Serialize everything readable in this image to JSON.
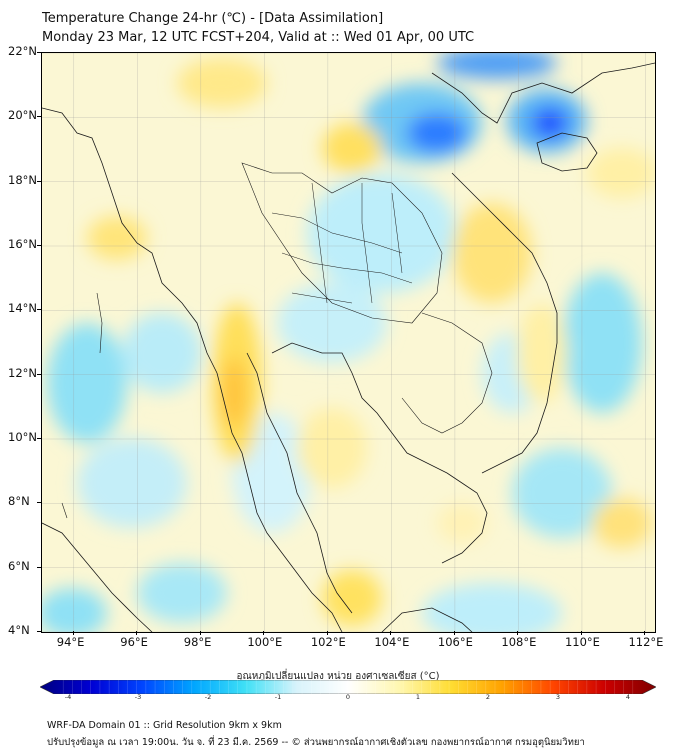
{
  "header": {
    "title": "Temperature Change 24-hr (℃) - [Data Assimilation]",
    "subtitle": "Monday 23 Mar, 12 UTC FCST+204, Valid at :: Wed 01 Apr, 00 UTC"
  },
  "map": {
    "lat_labels": [
      "22°N",
      "20°N",
      "18°N",
      "16°N",
      "14°N",
      "12°N",
      "10°N",
      "8°N",
      "6°N",
      "4°N"
    ],
    "lon_labels": [
      "94°E",
      "96°E",
      "98°E",
      "100°E",
      "102°E",
      "104°E",
      "106°E",
      "108°E",
      "110°E",
      "112°E"
    ],
    "lat_range": [
      4,
      22
    ],
    "lon_range": [
      93,
      112.3
    ],
    "gridlines": true
  },
  "colorbar": {
    "title": "อุณหภูมิเปลี่ยนแปลง หน่วย องศาเซลเซียส (°C)",
    "tick_labels": [
      "-4",
      "-3",
      "-2",
      "-1",
      "0",
      "1",
      "2",
      "3",
      "4"
    ],
    "range": [
      -4,
      4
    ],
    "colors": [
      "#00007f",
      "#0000d4",
      "#0045ff",
      "#00a6ff",
      "#3fe0f6",
      "#d8f3fb",
      "#ffffff",
      "#fff7b0",
      "#ffdd33",
      "#ffa200",
      "#ff4500",
      "#cc0000",
      "#7f0000"
    ]
  },
  "footer": {
    "line1": "WRF-DA Domain 01 :: Grid Resolution 9km x 9km",
    "line2": "ปรับปรุงข้อมูล ณ เวลา 19:00น. วัน จ. ที่ 23 มี.ค. 2569 -- © ส่วนพยากรณ์อากาศเชิงตัวเลข กองพยากรณ์อากาศ กรมอุตุนิยมวิทยา"
  }
}
